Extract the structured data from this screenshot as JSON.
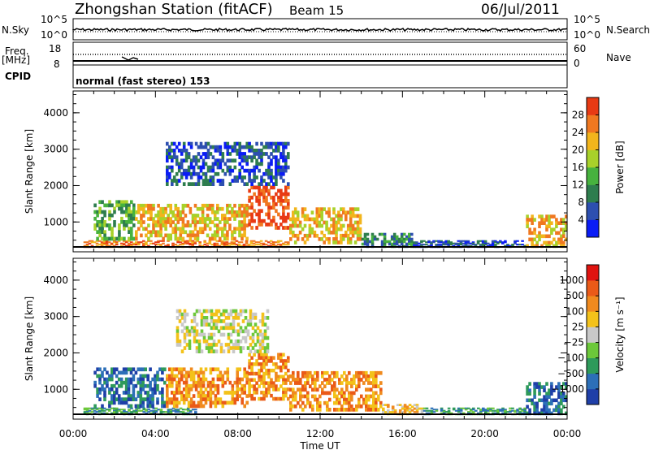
{
  "header": {
    "station": "Zhongshan Station (fitACF)",
    "beam": "Beam 15",
    "date": "06/Jul/2011"
  },
  "strips": {
    "nsky_label": "N.Sky",
    "nsky_top": "10^5",
    "nsky_bottom": "10^0",
    "nsearch_label": "N.Search",
    "nsearch_top": "10^5",
    "nsearch_bottom": "10^0",
    "freq_label": "Freq.",
    "freq_unit": "[MHz]",
    "freq_top": "18",
    "freq_bottom": "8",
    "nave_label": "Nave",
    "nave_top": "60",
    "nave_bottom": "0",
    "cpid_label": "CPID",
    "cpid_value": "normal (fast stereo) 153"
  },
  "chart_data": [
    {
      "type": "heatmap",
      "title": "",
      "xlabel": "Time UT",
      "ylabel": "Slant Range [km]",
      "x_ticks": [
        "00:00",
        "04:00",
        "08:00",
        "12:00",
        "16:00",
        "20:00",
        "00:00"
      ],
      "xlim_hours": [
        0,
        24
      ],
      "y_ticks": [
        1000,
        2000,
        3000,
        4000
      ],
      "ylim": [
        180,
        4600
      ],
      "colorbar": {
        "label": "Power [dB]",
        "ticks": [
          4,
          8,
          12,
          16,
          20,
          24,
          28
        ],
        "range": [
          0,
          32
        ],
        "colors": [
          "#0a1cf5",
          "#2d4fb0",
          "#2e7d4e",
          "#47b23e",
          "#a8d12a",
          "#f2b51c",
          "#f07820",
          "#e83a14"
        ]
      },
      "regions": [
        {
          "t0": 0.5,
          "t1": 10.5,
          "r0": 300,
          "r1": 500,
          "level": 6
        },
        {
          "t0": 1.0,
          "t1": 3.0,
          "r0": 500,
          "r1": 1600,
          "level": 3
        },
        {
          "t0": 3.0,
          "t1": 8.5,
          "r0": 500,
          "r1": 1500,
          "level": 5
        },
        {
          "t0": 8.5,
          "t1": 10.5,
          "r0": 800,
          "r1": 2000,
          "level": 7
        },
        {
          "t0": 10.5,
          "t1": 14.0,
          "r0": 400,
          "r1": 1400,
          "level": 5
        },
        {
          "t0": 14.0,
          "t1": 16.5,
          "r0": 300,
          "r1": 700,
          "level": 2
        },
        {
          "t0": 16.5,
          "t1": 22.0,
          "r0": 300,
          "r1": 500,
          "level": 1
        },
        {
          "t0": 22.0,
          "t1": 24.0,
          "r0": 300,
          "r1": 1200,
          "level": 5
        },
        {
          "t0": 4.5,
          "t1": 10.5,
          "r0": 2000,
          "r1": 3200,
          "level": 1
        }
      ]
    },
    {
      "type": "heatmap",
      "title": "",
      "xlabel": "Time UT",
      "ylabel": "Slant Range [km]",
      "x_ticks": [
        "00:00",
        "04:00",
        "08:00",
        "12:00",
        "16:00",
        "20:00",
        "00:00"
      ],
      "xlim_hours": [
        0,
        24
      ],
      "y_ticks": [
        1000,
        2000,
        3000,
        4000
      ],
      "ylim": [
        180,
        4600
      ],
      "colorbar": {
        "label": "Velocity [m s⁻¹]",
        "ticks": [
          "1000",
          "500",
          "100",
          "25",
          "−25",
          "−100",
          "−500",
          "−1000"
        ],
        "colors": [
          "#1f3fa8",
          "#2c6fb8",
          "#2e9a5a",
          "#6cc83a",
          "#c8c8c8",
          "#f3c21a",
          "#f08a1e",
          "#ea5a18",
          "#e01410"
        ]
      },
      "regions": [
        {
          "t0": 0.5,
          "t1": 6.0,
          "r0": 300,
          "r1": 500,
          "level": 2
        },
        {
          "t0": 1.0,
          "t1": 4.5,
          "r0": 500,
          "r1": 1600,
          "level": 1
        },
        {
          "t0": 4.5,
          "t1": 8.5,
          "r0": 500,
          "r1": 1600,
          "level": 6
        },
        {
          "t0": 8.5,
          "t1": 10.5,
          "r0": 700,
          "r1": 2000,
          "level": 6
        },
        {
          "t0": 10.5,
          "t1": 15.0,
          "r0": 400,
          "r1": 1500,
          "level": 6
        },
        {
          "t0": 15.0,
          "t1": 17.0,
          "r0": 300,
          "r1": 600,
          "level": 5
        },
        {
          "t0": 17.0,
          "t1": 22.0,
          "r0": 300,
          "r1": 500,
          "level": 2
        },
        {
          "t0": 22.0,
          "t1": 24.0,
          "r0": 300,
          "r1": 1200,
          "level": 1
        },
        {
          "t0": 5.0,
          "t1": 9.5,
          "r0": 2000,
          "r1": 3200,
          "level": 4
        }
      ]
    }
  ]
}
